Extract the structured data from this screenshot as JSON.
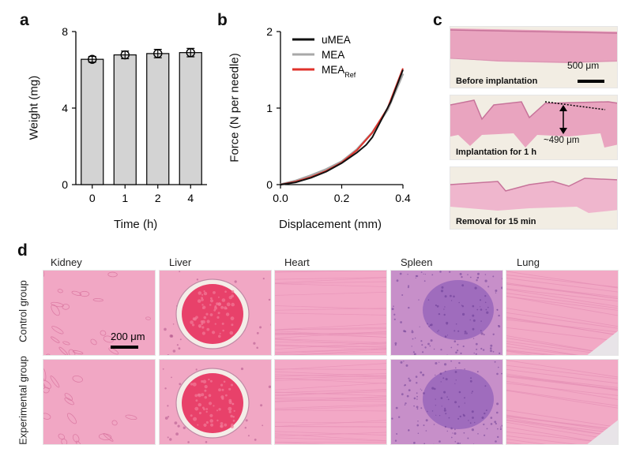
{
  "panels": {
    "a": "a",
    "b": "b",
    "c": "c",
    "d": "d"
  },
  "colors": {
    "bar_fill": "#d3d3d3",
    "umea": "#111111",
    "mea": "#a8a8a8",
    "mea_ref": "#e0322b",
    "he_pink": "#f0a6c8",
    "he_purple": "#9a6bbf"
  },
  "chart_data": [
    {
      "id": "a",
      "type": "bar",
      "categories": [
        "0",
        "1",
        "2",
        "4"
      ],
      "values": [
        6.55,
        6.78,
        6.85,
        6.9
      ],
      "errors": [
        0.15,
        0.2,
        0.22,
        0.22
      ],
      "xlabel": "Time (h)",
      "ylabel": "Weight (mg)",
      "ylim": [
        0,
        8
      ],
      "yticks": [
        "0",
        "4",
        "8"
      ]
    },
    {
      "id": "b",
      "type": "line",
      "xlabel": "Displacement (mm)",
      "ylabel": "Force (N per needle)",
      "xlim": [
        0,
        0.4
      ],
      "ylim": [
        0,
        2
      ],
      "xticks": [
        "0.0",
        "0.2",
        "0.4"
      ],
      "yticks": [
        "0",
        "1",
        "2"
      ],
      "legend_position": "top-right",
      "series": [
        {
          "name": "uMEA",
          "name_sub": "",
          "color": "#111111",
          "x": [
            0,
            0.05,
            0.1,
            0.15,
            0.2,
            0.25,
            0.28,
            0.3,
            0.33,
            0.36,
            0.4
          ],
          "y": [
            0,
            0.03,
            0.09,
            0.17,
            0.28,
            0.42,
            0.52,
            0.62,
            0.85,
            1.08,
            1.5
          ]
        },
        {
          "name": "MEA",
          "name_sub": "",
          "color": "#a8a8a8",
          "x": [
            0,
            0.05,
            0.1,
            0.15,
            0.2,
            0.25,
            0.3,
            0.35,
            0.4
          ],
          "y": [
            0,
            0.05,
            0.12,
            0.2,
            0.3,
            0.46,
            0.68,
            0.98,
            1.45
          ]
        },
        {
          "name": "MEA",
          "name_sub": "Ref",
          "color": "#e0322b",
          "x": [
            0,
            0.05,
            0.1,
            0.15,
            0.2,
            0.25,
            0.3,
            0.35,
            0.4
          ],
          "y": [
            0,
            0.04,
            0.1,
            0.18,
            0.29,
            0.45,
            0.68,
            1.0,
            1.52
          ]
        }
      ]
    }
  ],
  "c": {
    "scale_bar": "500 μm",
    "captions": [
      "Before implantation",
      "Implantation for 1 h",
      "Removal for 15 min"
    ],
    "depth_label": "~490 μm"
  },
  "d": {
    "tissues": [
      "Kidney",
      "Liver",
      "Heart",
      "Spleen",
      "Lung"
    ],
    "groups": [
      "Control group",
      "Experimental group"
    ],
    "scale_bar": "200 μm"
  }
}
